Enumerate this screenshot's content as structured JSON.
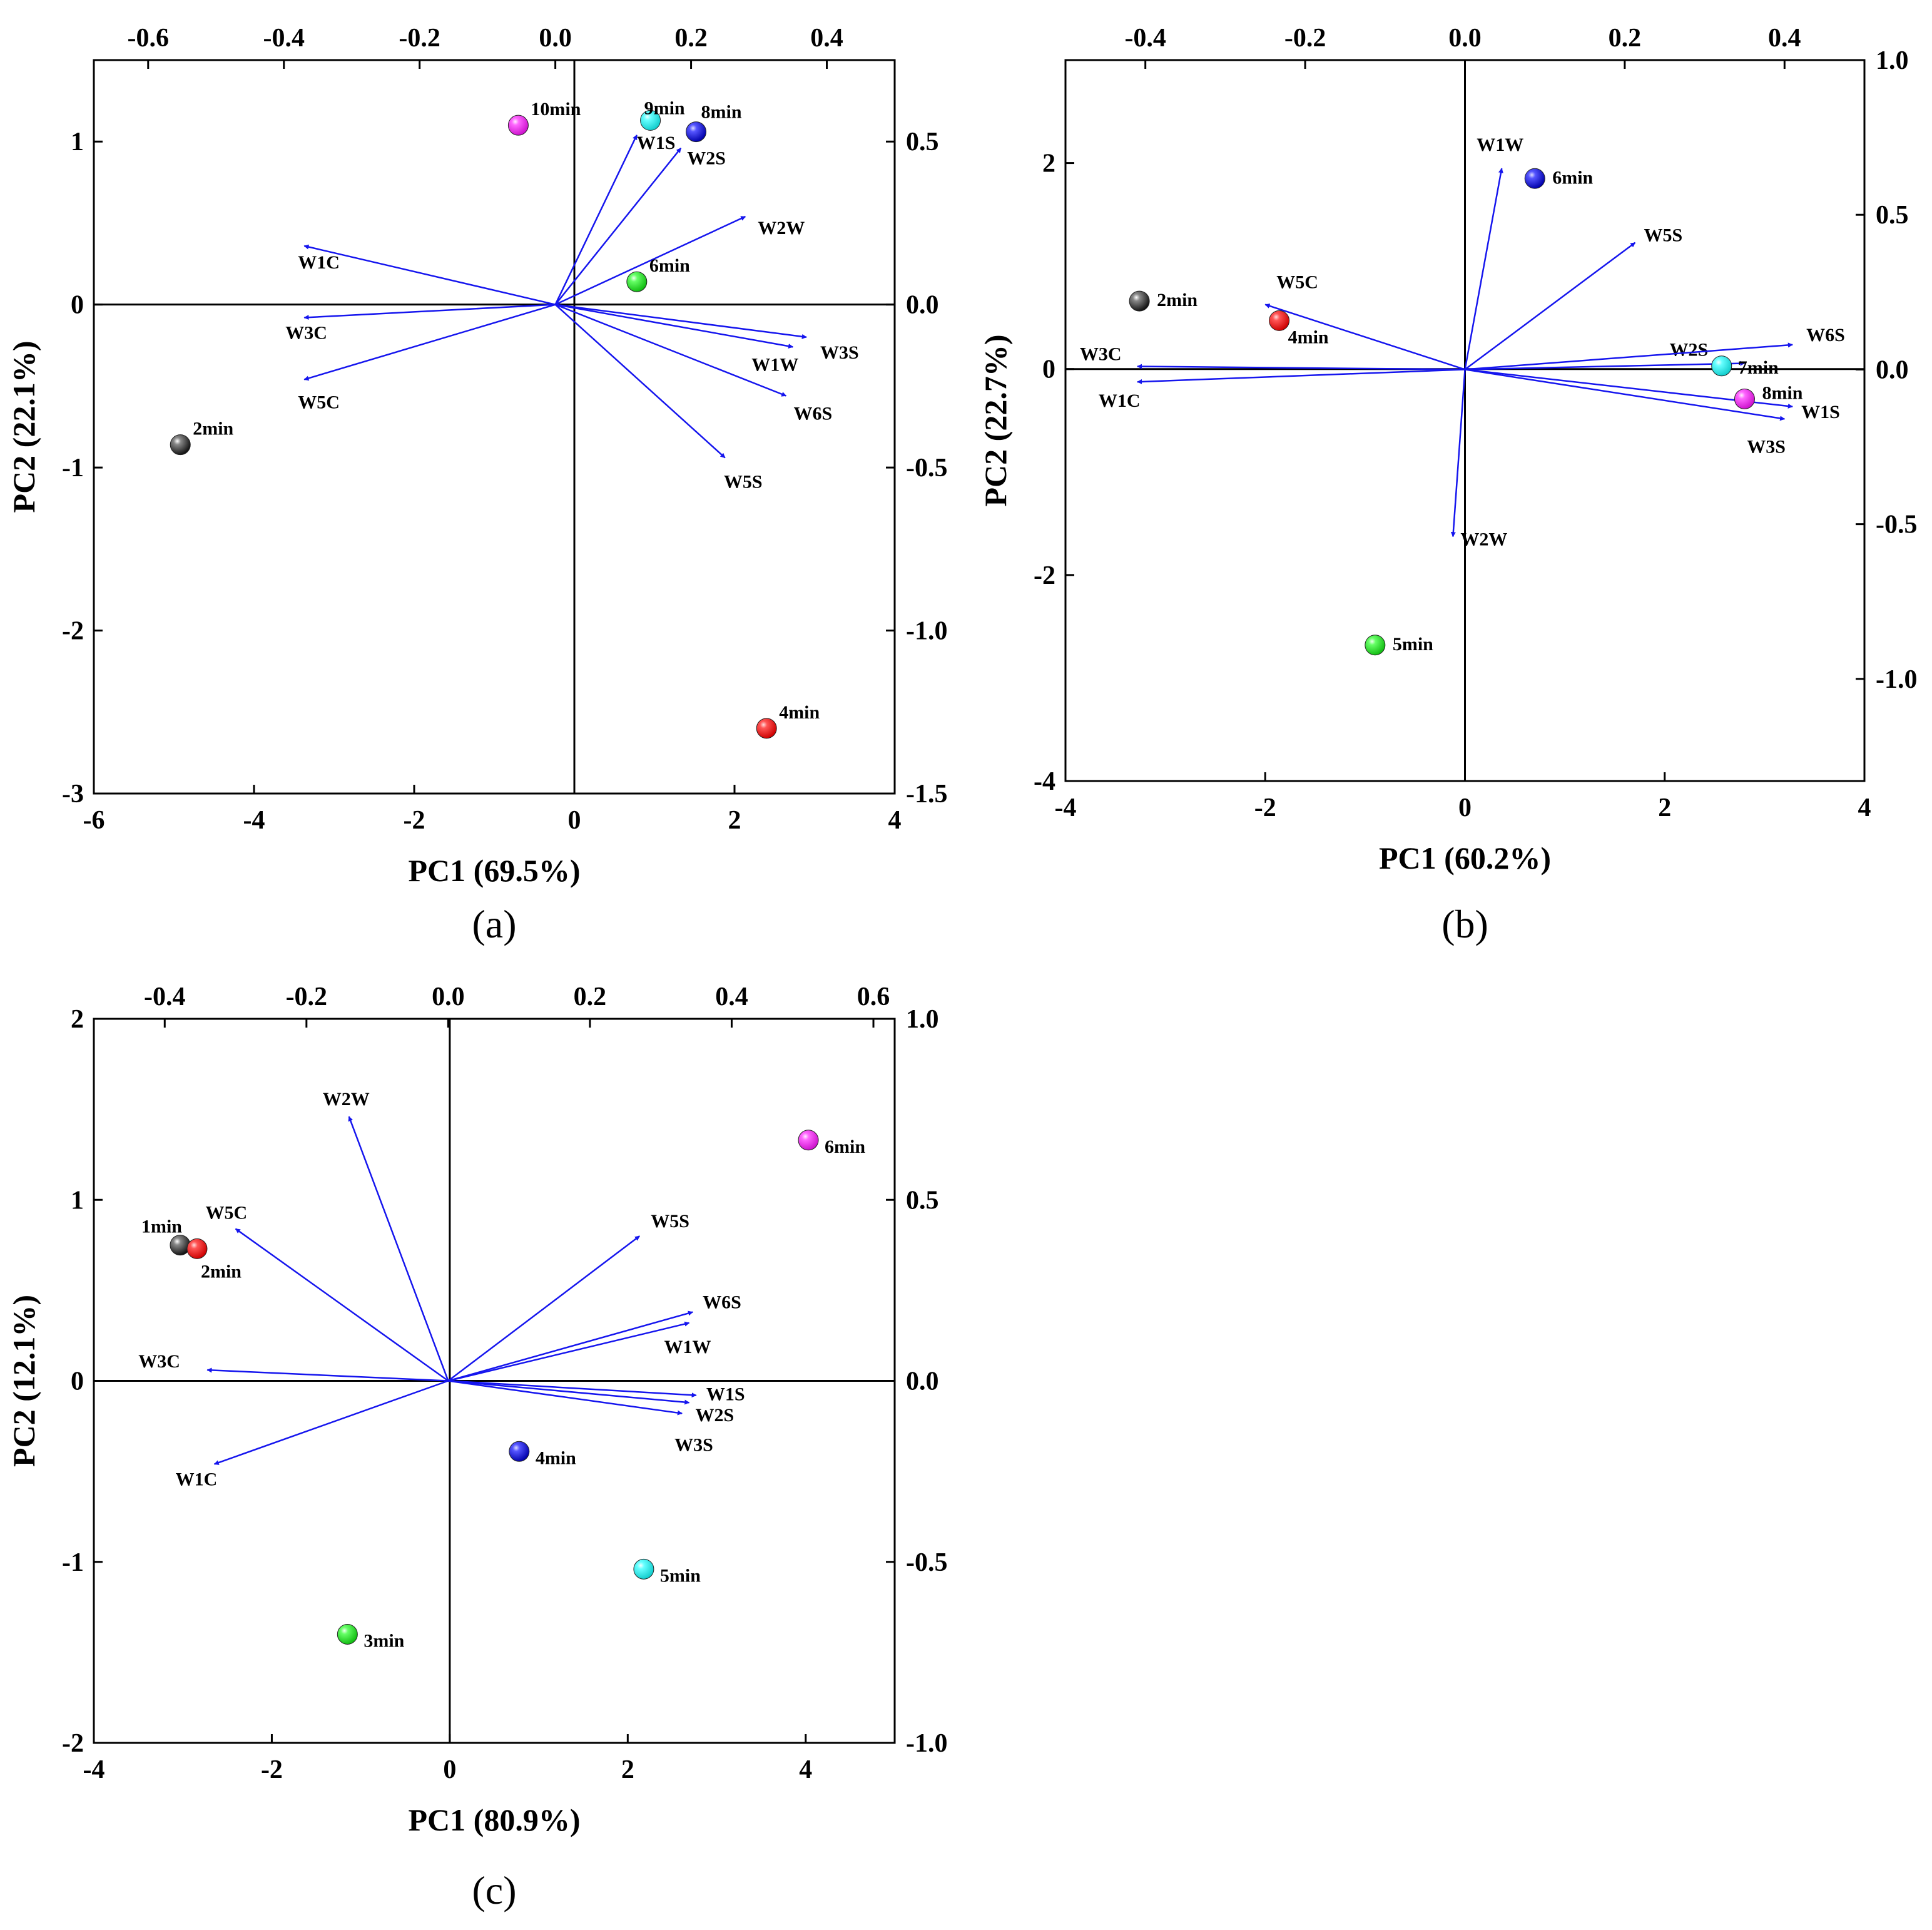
{
  "colors": {
    "vector": "#1515ee",
    "axis": "#000000",
    "black": "#111111",
    "red": "#ee1111",
    "blue": "#1a1ad6",
    "green": "#22dd22",
    "cyan": "#22eeee",
    "magenta": "#ee22ee"
  },
  "chart_data": [
    {
      "type": "scatter",
      "subtype": "pca-biplot",
      "panel_label": "(a)",
      "xlabel": "PC1 (69.5%)",
      "ylabel": "PC2 (22.1%)",
      "xlim": [
        -6,
        4
      ],
      "ylim": [
        -3,
        1.5
      ],
      "x_ticks": [
        -6,
        -4,
        -2,
        0,
        2,
        4
      ],
      "y_ticks": [
        -3,
        -2,
        -1,
        0,
        1
      ],
      "x2lim": [
        -0.68,
        0.5
      ],
      "y2lim": [
        -1.5,
        0.75
      ],
      "x2_ticks": [
        -0.6,
        -0.4,
        -0.2,
        0.0,
        0.2,
        0.4
      ],
      "y2_ticks": [
        -1.5,
        -1.0,
        -0.5,
        0.0,
        0.5
      ],
      "scores": [
        {
          "label": "2min",
          "x": -4.92,
          "y": -0.86,
          "color": "black"
        },
        {
          "label": "4min",
          "x": 2.4,
          "y": -2.6,
          "color": "red"
        },
        {
          "label": "6min",
          "x": 0.78,
          "y": 0.14,
          "color": "green"
        },
        {
          "label": "8min",
          "x": 1.52,
          "y": 1.06,
          "color": "blue"
        },
        {
          "label": "9min",
          "x": 0.95,
          "y": 1.13,
          "color": "cyan"
        },
        {
          "label": "10min",
          "x": -0.7,
          "y": 1.1,
          "color": "magenta"
        }
      ],
      "loadings": [
        {
          "label": "W1S",
          "x": 0.12,
          "y": 0.52
        },
        {
          "label": "W2S",
          "x": 0.185,
          "y": 0.48
        },
        {
          "label": "W2W",
          "x": 0.28,
          "y": 0.27
        },
        {
          "label": "W1C",
          "x": -0.37,
          "y": 0.18
        },
        {
          "label": "W3C",
          "x": -0.37,
          "y": -0.04
        },
        {
          "label": "W5C",
          "x": -0.37,
          "y": -0.23
        },
        {
          "label": "W3S",
          "x": 0.37,
          "y": -0.1
        },
        {
          "label": "W1W",
          "x": 0.35,
          "y": -0.13
        },
        {
          "label": "W6S",
          "x": 0.34,
          "y": -0.28
        },
        {
          "label": "W5S",
          "x": 0.25,
          "y": -0.47
        }
      ]
    },
    {
      "type": "scatter",
      "subtype": "pca-biplot",
      "panel_label": "(b)",
      "xlabel": "PC1 (60.2%)",
      "ylabel": "PC2 (22.7%)",
      "xlim": [
        -4,
        4
      ],
      "ylim": [
        -4,
        3
      ],
      "x_ticks": [
        -4,
        -2,
        0,
        2,
        4
      ],
      "y_ticks": [
        -4,
        -2,
        0,
        2
      ],
      "x2lim": [
        -0.5,
        0.5
      ],
      "y2lim": [
        -1.33,
        1.0
      ],
      "x2_ticks": [
        -0.4,
        -0.2,
        0.0,
        0.2,
        0.4
      ],
      "y2_ticks": [
        -1.0,
        -0.5,
        0.0,
        0.5,
        1.0
      ],
      "scores": [
        {
          "label": "2min",
          "x": -3.26,
          "y": 0.66,
          "color": "black"
        },
        {
          "label": "4min",
          "x": -1.86,
          "y": 0.47,
          "color": "red"
        },
        {
          "label": "5min",
          "x": -0.9,
          "y": -2.68,
          "color": "green"
        },
        {
          "label": "6min",
          "x": 0.7,
          "y": 1.85,
          "color": "blue"
        },
        {
          "label": "7min",
          "x": 2.57,
          "y": 0.03,
          "color": "cyan"
        },
        {
          "label": "8min",
          "x": 2.8,
          "y": -0.29,
          "color": "magenta"
        }
      ],
      "loadings": [
        {
          "label": "W1W",
          "x": 0.046,
          "y": 0.65
        },
        {
          "label": "W5S",
          "x": 0.213,
          "y": 0.41
        },
        {
          "label": "W5C",
          "x": -0.25,
          "y": 0.21
        },
        {
          "label": "W3C",
          "x": -0.41,
          "y": 0.01
        },
        {
          "label": "W1C",
          "x": -0.41,
          "y": -0.04
        },
        {
          "label": "W2S",
          "x": 0.35,
          "y": 0.02
        },
        {
          "label": "W6S",
          "x": 0.41,
          "y": 0.08
        },
        {
          "label": "W1S",
          "x": 0.41,
          "y": -0.12
        },
        {
          "label": "W3S",
          "x": 0.4,
          "y": -0.16
        },
        {
          "label": "W2W",
          "x": -0.015,
          "y": -0.54
        }
      ]
    },
    {
      "type": "scatter",
      "subtype": "pca-biplot",
      "panel_label": "(c)",
      "xlabel": "PC1 (80.9%)",
      "ylabel": "PC2 (12.1%)",
      "xlim": [
        -4,
        5
      ],
      "ylim": [
        -2,
        2
      ],
      "x_ticks": [
        -4,
        -2,
        0,
        2,
        4
      ],
      "y_ticks": [
        -2,
        -1,
        0,
        1,
        2
      ],
      "x2lim": [
        -0.5,
        0.63
      ],
      "y2lim": [
        -1.0,
        1.0
      ],
      "x2_ticks": [
        -0.4,
        -0.2,
        0.0,
        0.2,
        0.4,
        0.6
      ],
      "y2_ticks": [
        -1.0,
        -0.5,
        0.0,
        0.5,
        1.0
      ],
      "scores": [
        {
          "label": "1min",
          "x": -3.03,
          "y": 0.75,
          "color": "black"
        },
        {
          "label": "2min",
          "x": -2.84,
          "y": 0.73,
          "color": "red"
        },
        {
          "label": "3min",
          "x": -1.15,
          "y": -1.4,
          "color": "green"
        },
        {
          "label": "4min",
          "x": 0.78,
          "y": -0.39,
          "color": "blue"
        },
        {
          "label": "5min",
          "x": 2.18,
          "y": -1.04,
          "color": "cyan"
        },
        {
          "label": "6min",
          "x": 4.03,
          "y": 1.33,
          "color": "magenta"
        }
      ],
      "loadings": [
        {
          "label": "W2W",
          "x": -0.14,
          "y": 0.73
        },
        {
          "label": "W5C",
          "x": -0.3,
          "y": 0.42
        },
        {
          "label": "W3C",
          "x": -0.34,
          "y": 0.03
        },
        {
          "label": "W1C",
          "x": -0.33,
          "y": -0.23
        },
        {
          "label": "W5S",
          "x": 0.27,
          "y": 0.4
        },
        {
          "label": "W6S",
          "x": 0.345,
          "y": 0.19
        },
        {
          "label": "W1W",
          "x": 0.34,
          "y": 0.16
        },
        {
          "label": "W1S",
          "x": 0.35,
          "y": -0.04
        },
        {
          "label": "W2S",
          "x": 0.34,
          "y": -0.06
        },
        {
          "label": "W3S",
          "x": 0.33,
          "y": -0.09
        }
      ]
    }
  ]
}
